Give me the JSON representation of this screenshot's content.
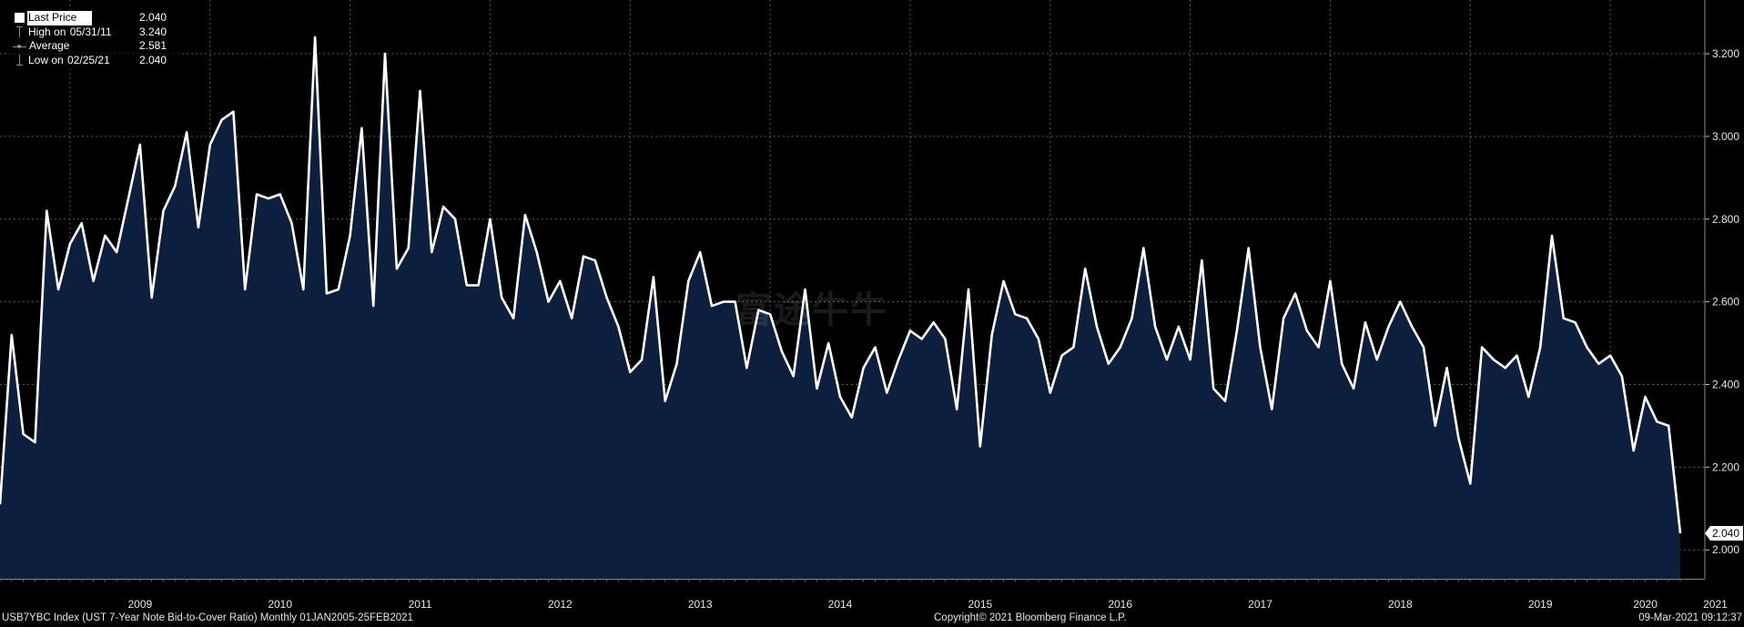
{
  "legend": {
    "last_price_label": "Last Price",
    "last_price_value": "2.040",
    "high_label_prefix": "High on ",
    "high_date": "05/31/11",
    "high_value": "3.240",
    "average_label": "Average",
    "average_value": "2.581",
    "low_label_prefix": "Low on ",
    "low_date": "02/25/21",
    "low_value": "2.040"
  },
  "footer": {
    "left": "USB7YBC Index (UST 7-Year Note Bid-to-Cover Ratio)  Monthly 01JAN2005-25FEB2021",
    "center": "Copyright© 2021 Bloomberg Finance L.P.",
    "right": "09-Mar-2021 09:12:37"
  },
  "watermark": "富途牛牛",
  "colors": {
    "background": "#000000",
    "fill": "#0c1f3e",
    "line": "#ffffff",
    "grid": "#5a5a5a"
  },
  "chart_data": {
    "type": "area",
    "ylim": [
      1.93,
      3.33
    ],
    "y_ticks": [
      "2.000",
      "2.200",
      "2.400",
      "2.600",
      "2.800",
      "3.000",
      "3.200"
    ],
    "x_year_labels": [
      "2009",
      "2010",
      "2011",
      "2012",
      "2013",
      "2014",
      "2015",
      "2016",
      "2017",
      "2018",
      "2019",
      "2020",
      "2021"
    ],
    "last_value_label": "2.040",
    "x_start": "2008-07",
    "series": [
      {
        "values": [
          2.11,
          2.52,
          2.28,
          2.26,
          2.82,
          2.63,
          2.74,
          2.79,
          2.65,
          2.76,
          2.72,
          2.85,
          2.98,
          2.61,
          2.82,
          2.88,
          3.01,
          2.78,
          2.98,
          3.04,
          3.06,
          2.63,
          2.86,
          2.85,
          2.86,
          2.79,
          2.63,
          3.24,
          2.62,
          2.63,
          2.76,
          3.02,
          2.59,
          3.2,
          2.68,
          2.73,
          3.11,
          2.72,
          2.83,
          2.8,
          2.64,
          2.64,
          2.8,
          2.61,
          2.56,
          2.81,
          2.72,
          2.6,
          2.65,
          2.56,
          2.71,
          2.7,
          2.61,
          2.54,
          2.43,
          2.46,
          2.66,
          2.36,
          2.45,
          2.65,
          2.72,
          2.59,
          2.6,
          2.6,
          2.44,
          2.58,
          2.57,
          2.48,
          2.42,
          2.63,
          2.39,
          2.5,
          2.37,
          2.32,
          2.44,
          2.49,
          2.38,
          2.46,
          2.53,
          2.51,
          2.55,
          2.51,
          2.34,
          2.63,
          2.25,
          2.52,
          2.65,
          2.57,
          2.56,
          2.51,
          2.38,
          2.47,
          2.49,
          2.68,
          2.54,
          2.45,
          2.49,
          2.56,
          2.73,
          2.54,
          2.46,
          2.54,
          2.46,
          2.7,
          2.39,
          2.36,
          2.53,
          2.73,
          2.49,
          2.34,
          2.56,
          2.62,
          2.53,
          2.49,
          2.65,
          2.45,
          2.39,
          2.55,
          2.46,
          2.54,
          2.6,
          2.54,
          2.49,
          2.3,
          2.44,
          2.27,
          2.16,
          2.49,
          2.46,
          2.44,
          2.47,
          2.37,
          2.49,
          2.76,
          2.56,
          2.55,
          2.49,
          2.45,
          2.47,
          2.42,
          2.24,
          2.37,
          2.31,
          2.3,
          2.04
        ]
      }
    ]
  }
}
